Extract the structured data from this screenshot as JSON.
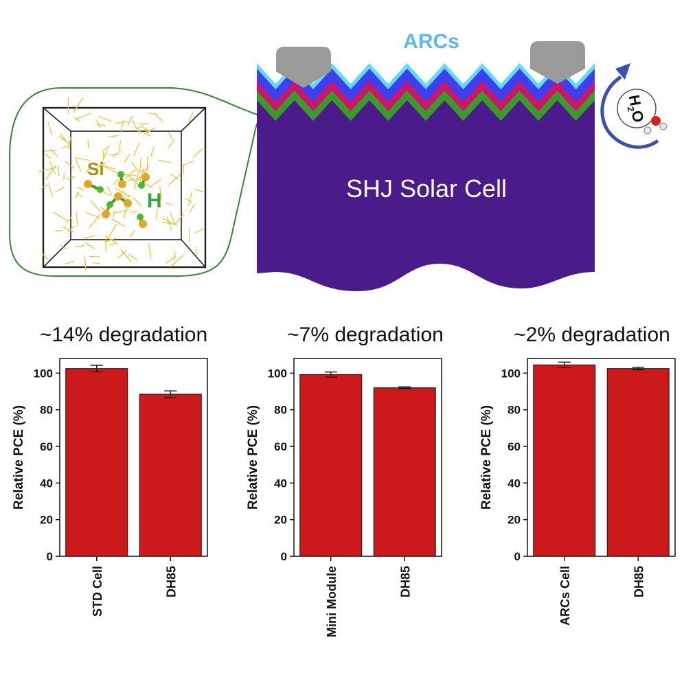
{
  "schematic": {
    "arcs_label": "ARCs",
    "cell_label": "SHJ Solar Cell",
    "si_label": "Si",
    "h_label": "H",
    "water_label": "H2O",
    "water_main": "H",
    "water_sub": "2",
    "water_o": "O",
    "icons": [
      "rotation-arrow-icon",
      "water-molecule-icon",
      "amorphous-silicon-lattice-icon"
    ]
  },
  "colors": {
    "bar": "#cc1a1c",
    "cell": "#4b1b8c",
    "arcs_text": "#5fb7ef",
    "si_text": "#b08a12",
    "h_text": "#3aa33a"
  },
  "chart_data": [
    {
      "type": "bar",
      "title": "~14% degradation",
      "ylabel": "Relative PCE (%)",
      "categories": [
        "STD Cell",
        "DH85"
      ],
      "values": [
        102.5,
        88.5
      ],
      "errors": [
        1.8,
        1.8
      ],
      "ylim": [
        0,
        108
      ],
      "yticks": [
        0,
        20,
        40,
        60,
        80,
        100
      ]
    },
    {
      "type": "bar",
      "title": "~7% degradation",
      "ylabel": "Relative PCE (%)",
      "categories": [
        "Mini Module",
        "DH85"
      ],
      "values": [
        99.2,
        92.0
      ],
      "errors": [
        1.4,
        0.5
      ],
      "ylim": [
        0,
        108
      ],
      "yticks": [
        0,
        20,
        40,
        60,
        80,
        100
      ]
    },
    {
      "type": "bar",
      "title": "~2% degradation",
      "ylabel": "Relative PCE (%)",
      "categories": [
        "ARCs Cell",
        "DH85"
      ],
      "values": [
        104.5,
        102.5
      ],
      "errors": [
        1.5,
        0.7
      ],
      "ylim": [
        0,
        108
      ],
      "yticks": [
        0,
        20,
        40,
        60,
        80,
        100
      ]
    }
  ]
}
